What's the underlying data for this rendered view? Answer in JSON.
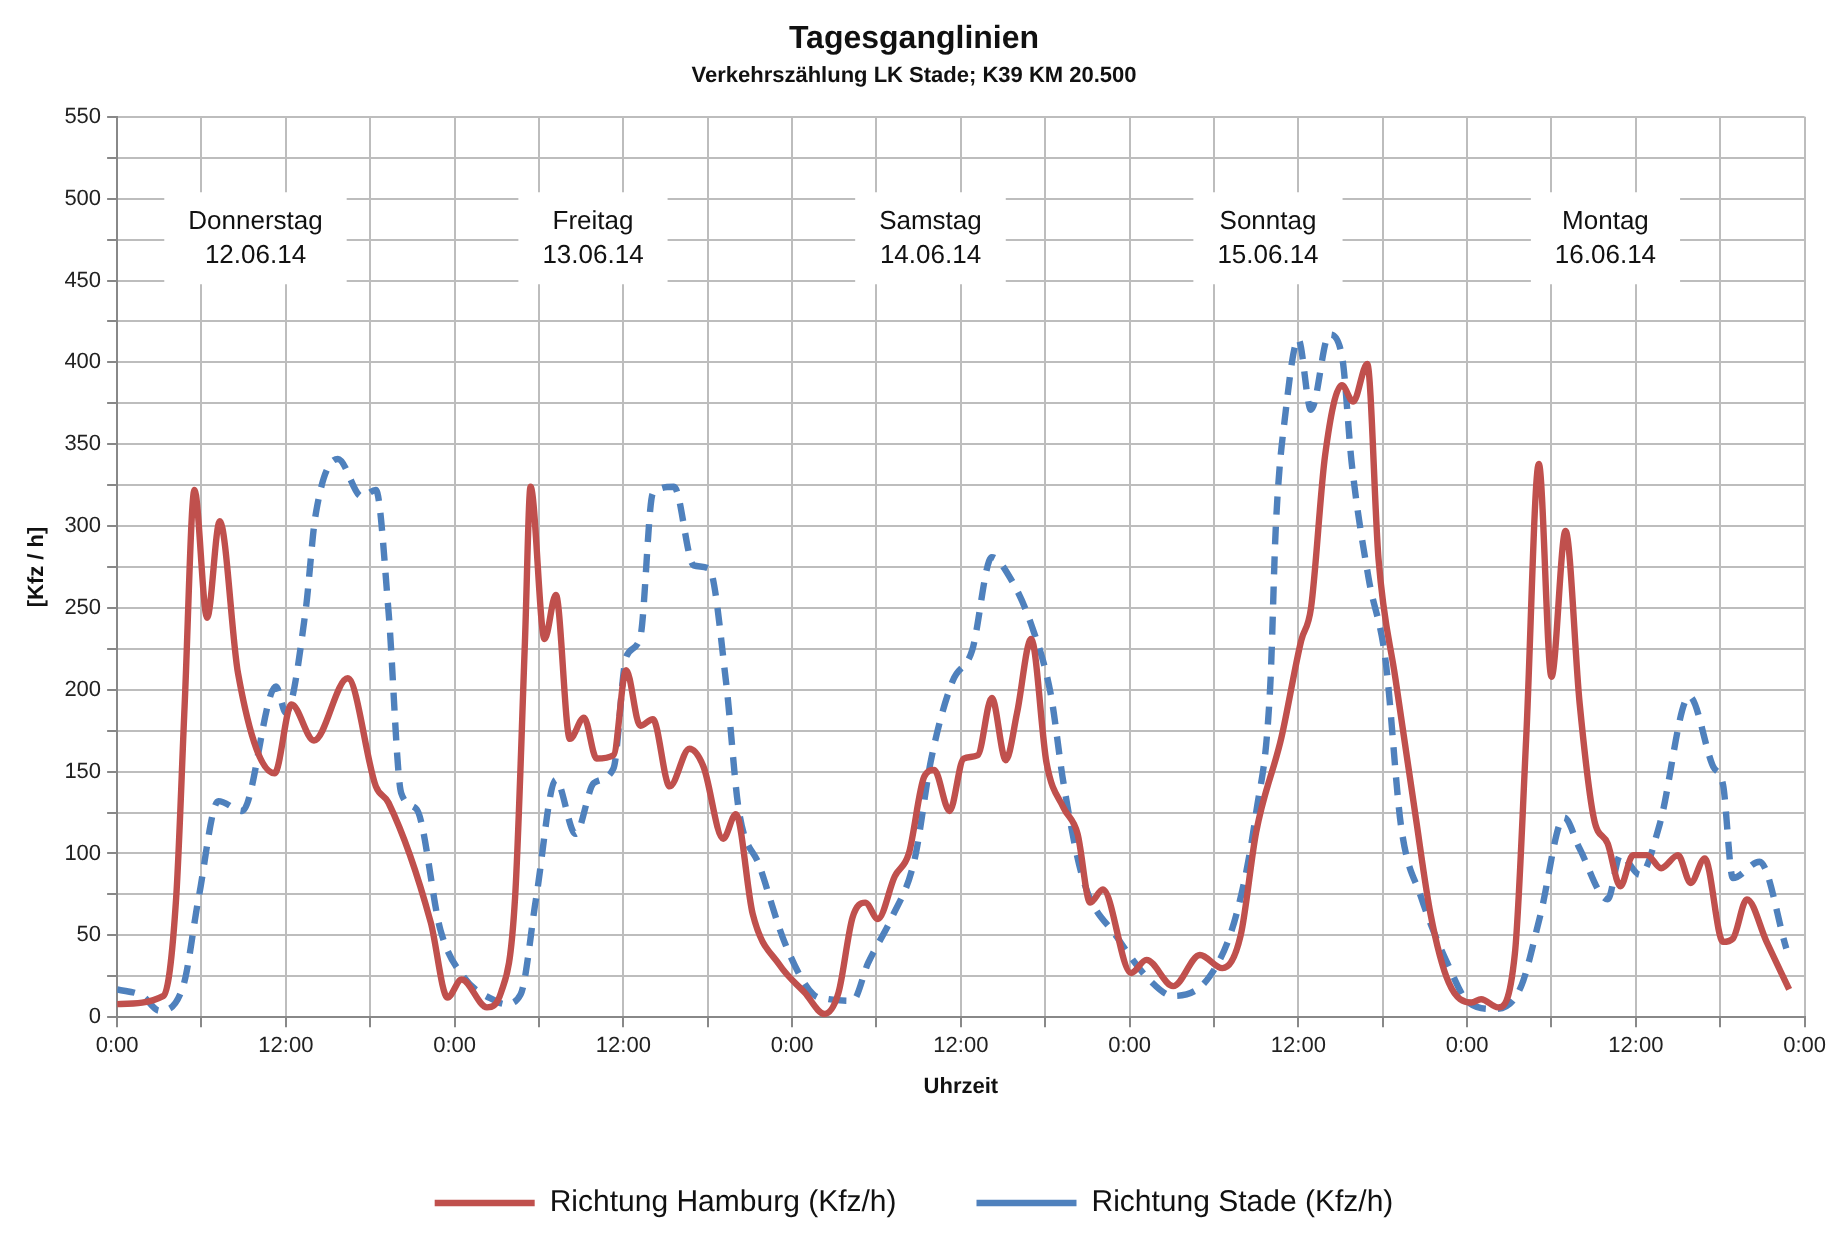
{
  "chart_data": {
    "type": "line",
    "title": "Tagesganglinien",
    "subtitle": "Verkehrszählung LK Stade; K39 KM 20.500",
    "xlabel": "Uhrzeit",
    "ylabel": "[Kfz / h]",
    "xlim": [
      "--06-12T00:00",
      "--06-17T00:00"
    ],
    "xticks": [
      {
        "value": "--06-12T00:00",
        "label": "0:00"
      },
      {
        "value": "--06-12T06:00",
        "label": null
      },
      {
        "value": "--06-12T12:00",
        "label": "12:00"
      },
      {
        "value": "--06-12T18:00",
        "label": null
      },
      {
        "value": "--06-13T00:00",
        "label": "0:00"
      },
      {
        "value": "--06-13T06:00",
        "label": null
      },
      {
        "value": "--06-13T12:00",
        "label": "12:00"
      },
      {
        "value": "--06-13T18:00",
        "label": null
      },
      {
        "value": "--06-14T00:00",
        "label": "0:00"
      },
      {
        "value": "--06-14T06:00",
        "label": null
      },
      {
        "value": "--06-14T12:00",
        "label": "12:00"
      },
      {
        "value": "--06-14T18:00",
        "label": null
      },
      {
        "value": "--06-15T00:00",
        "label": "0:00"
      },
      {
        "value": "--06-15T06:00",
        "label": null
      },
      {
        "value": "--06-15T12:00",
        "label": "12:00"
      },
      {
        "value": "--06-15T18:00",
        "label": null
      },
      {
        "value": "--06-16T00:00",
        "label": "0:00"
      },
      {
        "value": "--06-16T06:00",
        "label": null
      },
      {
        "value": "--06-16T12:00",
        "label": "12:00"
      },
      {
        "value": "--06-16T18:00",
        "label": null
      },
      {
        "value": "--06-17T00:00",
        "label": "0:00"
      }
    ],
    "ylim": [
      0,
      550
    ],
    "yticks": [
      0,
      {
        "value": 25,
        "label": null
      },
      50,
      {
        "value": 75,
        "label": null
      },
      100,
      {
        "value": 125,
        "label": null
      },
      150,
      {
        "value": 175,
        "label": null
      },
      200,
      {
        "value": 225,
        "label": null
      },
      250,
      {
        "value": 275,
        "label": null
      },
      300,
      {
        "value": 325,
        "label": null
      },
      350,
      {
        "value": 375,
        "label": null
      },
      400,
      {
        "value": 425,
        "label": null
      },
      450,
      {
        "value": 475,
        "label": null
      },
      500,
      {
        "value": 525,
        "label": null
      },
      550
    ],
    "grid": true,
    "legend": "bottom",
    "marker": "none",
    "annotations": [
      "Donnerstag\n12.06.14",
      "Freitag\n13.06.14",
      "Samstag\n14.06.14",
      "Sonntag\n15.06.14",
      "Montag\n16.06.14"
    ],
    "series": [
      {
        "name": "Richtung Hamburg (Kfz/h)",
        "color": "#c0504d",
        "line_style": "solid",
        "x": [
          "--06-12T00:00",
          "--06-12T03:18",
          "--06-12T04:12",
          "--06-12T04:48",
          "--06-12T05:30",
          "--06-12T06:24",
          "--06-12T07:18",
          "--06-12T08:36",
          "--06-12T11:12",
          "--06-12T12:24",
          "--06-12T14:00",
          "--06-12T16:24",
          "--06-12T18:24",
          "--06-12T19:18",
          "--06-12T22:18",
          "--06-12T23:30",
          "--06-13T00:30",
          "--06-13T02:18",
          "--06-13T03:18",
          "--06-13T04:18",
          "--06-13T05:00",
          "--06-13T05:24",
          "--06-13T06:24",
          "--06-13T07:12",
          "--06-13T08:12",
          "--06-13T09:12",
          "--06-13T10:06",
          "--06-13T11:18",
          "--06-13T12:12",
          "--06-13T13:12",
          "--06-13T14:06",
          "--06-13T15:18",
          "--06-13T16:42",
          "--06-13T17:42",
          "--06-13T19:06",
          "--06-13T20:00",
          "--06-13T21:12",
          "--06-13T23:06",
          "--06-14T00:54",
          "--06-14T02:18",
          "--06-14T03:18",
          "--06-14T04:18",
          "--06-14T05:12",
          "--06-14T06:06",
          "--06-14T07:18",
          "--06-14T08:18",
          "--06-14T09:24",
          "--06-14T10:06",
          "--06-14T11:12",
          "--06-14T12:12",
          "--06-14T13:12",
          "--06-14T14:12",
          "--06-14T15:12",
          "--06-14T16:00",
          "--06-14T17:00",
          "--06-14T18:06",
          "--06-14T19:18",
          "--06-14T20:18",
          "--06-14T21:12",
          "--06-14T22:06",
          "--06-15T00:06",
          "--06-15T01:12",
          "--06-15T03:06",
          "--06-15T05:00",
          "--06-15T06:36",
          "--06-15T07:54",
          "--06-15T09:00",
          "--06-15T10:48",
          "--06-15T12:12",
          "--06-15T12:54",
          "--06-15T13:54",
          "--06-15T15:06",
          "--06-15T15:54",
          "--06-15T16:54",
          "--06-15T17:42",
          "--06-15T18:54",
          "--06-15T20:18",
          "--06-15T21:24",
          "--06-15T22:42",
          "--06-16T00:18",
          "--06-16T01:00",
          "--06-16T02:12",
          "--06-16T03:24",
          "--06-16T04:12",
          "--06-16T05:06",
          "--06-16T06:00",
          "--06-16T07:00",
          "--06-16T08:00",
          "--06-16T09:00",
          "--06-16T10:00",
          "--06-16T10:54",
          "--06-16T11:48",
          "--06-16T12:48",
          "--06-16T13:48",
          "--06-16T15:00",
          "--06-16T15:54",
          "--06-16T16:54",
          "--06-16T18:12",
          "--06-16T18:54",
          "--06-16T19:54",
          "--06-16T21:18",
          "--06-16T22:54"
        ],
        "values": [
          8,
          13,
          73,
          190,
          322,
          244,
          303,
          210,
          149,
          191,
          169,
          207,
          141,
          131,
          58,
          12,
          23,
          6,
          15,
          73,
          229,
          324,
          231,
          258,
          170,
          183,
          158,
          160,
          212,
          178,
          182,
          141,
          164,
          153,
          109,
          124,
          63,
          32,
          15,
          2,
          15,
          61,
          70,
          60,
          86,
          100,
          147,
          151,
          126,
          158,
          160,
          195,
          157,
          186,
          231,
          155,
          128,
          112,
          70,
          78,
          27,
          35,
          19,
          38,
          30,
          50,
          113,
          171,
          230,
          250,
          343,
          386,
          376,
          399,
          280,
          207,
          125,
          63,
          21,
          9,
          11,
          6,
          39,
          170,
          338,
          208,
          297,
          192,
          122,
          106,
          80,
          99,
          99,
          91,
          99,
          82,
          97,
          46,
          48,
          72,
          46,
          17
        ]
      },
      {
        "name": "Richtung Stade (Kfz/h)",
        "color": "#4f81bd",
        "line_style": "dashed",
        "x": [
          "--06-12T00:00",
          "--06-12T01:48",
          "--06-12T03:00",
          "--06-12T04:42",
          "--06-12T05:48",
          "--06-12T07:12",
          "--06-12T08:54",
          "--06-12T11:18",
          "--06-12T12:00",
          "--06-12T13:24",
          "--06-12T14:06",
          "--06-12T15:42",
          "--06-12T17:24",
          "--06-12T18:24",
          "--06-12T19:18",
          "--06-12T20:12",
          "--06-12T21:18",
          "--06-12T23:00",
          "--06-13T00:42",
          "--06-13T02:54",
          "--06-13T03:36",
          "--06-13T04:42",
          "--06-13T05:48",
          "--06-13T07:12",
          "--06-13T08:36",
          "--06-13T09:54",
          "--06-13T11:18",
          "--06-13T12:12",
          "--06-13T13:12",
          "--06-13T14:06",
          "--06-13T15:36",
          "--06-13T17:00",
          "--06-13T18:06",
          "--06-13T19:18",
          "--06-13T20:12",
          "--06-13T21:42",
          "--06-13T23:30",
          "--06-14T01:30",
          "--06-14T02:36",
          "--06-14T04:18",
          "--06-14T05:24",
          "--06-14T07:06",
          "--06-14T08:42",
          "--06-14T09:54",
          "--06-14T11:24",
          "--06-14T12:48",
          "--06-14T14:12",
          "--06-14T15:36",
          "--06-14T17:00",
          "--06-14T18:24",
          "--06-14T19:18",
          "--06-14T20:42",
          "--06-14T23:06",
          "--06-15T01:30",
          "--06-15T03:06",
          "--06-15T05:42",
          "--06-15T07:36",
          "--06-15T09:00",
          "--06-15T10:00",
          "--06-15T10:24",
          "--06-15T11:06",
          "--06-15T12:00",
          "--06-15T12:54",
          "--06-15T14:12",
          "--06-15T15:06",
          "--06-15T15:48",
          "--06-15T17:00",
          "--06-15T18:12",
          "--06-15T19:18",
          "--06-15T20:42",
          "--06-15T22:42",
          "--06-16T00:06",
          "--06-16T01:54",
          "--06-16T03:48",
          "--06-16T05:12",
          "--06-16T06:54",
          "--06-16T08:00",
          "--06-16T10:00",
          "--06-16T10:54",
          "--06-16T12:18",
          "--06-16T13:42",
          "--06-16T15:48",
          "--06-16T17:30",
          "--06-16T18:12",
          "--06-16T18:54",
          "--06-16T20:48",
          "--06-16T22:42"
        ],
        "values": [
          17,
          13,
          4,
          19,
          73,
          132,
          126,
          202,
          186,
          248,
          306,
          341,
          318,
          322,
          248,
          137,
          127,
          53,
          24,
          10,
          8,
          14,
          73,
          145,
          112,
          143,
          152,
          220,
          232,
          320,
          324,
          276,
          274,
          205,
          127,
          92,
          45,
          14,
          11,
          10,
          33,
          61,
          96,
          158,
          205,
          224,
          281,
          267,
          240,
          197,
          143,
          84,
          49,
          22,
          13,
          25,
          63,
          125,
          202,
          300,
          370,
          414,
          371,
          417,
          404,
          338,
          268,
          218,
          117,
          74,
          31,
          9,
          5,
          18,
          62,
          122,
          103,
          72,
          99,
          87,
          118,
          196,
          153,
          142,
          85,
          95,
          42
        ]
      }
    ]
  }
}
